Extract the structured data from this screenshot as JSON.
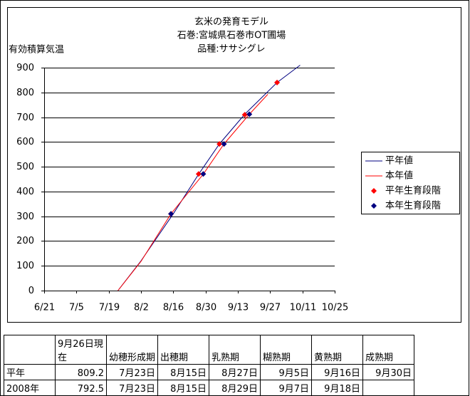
{
  "chart_data": {
    "type": "line",
    "title": "玄米の発育モデル",
    "subtitle": [
      "石巻:宮城県石巻市OT圃場",
      "品種:ササシグレ"
    ],
    "y_label": "有効積算気温",
    "xlim": [
      "6/21",
      "10/25"
    ],
    "xticks": [
      "6/21",
      "7/5",
      "7/19",
      "8/2",
      "8/16",
      "8/30",
      "9/13",
      "9/27",
      "10/11",
      "10/25"
    ],
    "ylim": [
      0,
      900
    ],
    "yticks": [
      0,
      100,
      200,
      300,
      400,
      500,
      600,
      700,
      800,
      900
    ],
    "grid": true,
    "legend": "right",
    "series": [
      {
        "name": "平年値",
        "mark": "line",
        "color": "#000080",
        "x": [
          "7/23",
          "8/2",
          "8/16",
          "8/27",
          "9/5",
          "9/16",
          "9/30",
          "10/10"
        ],
        "values": [
          0,
          120,
          310,
          470,
          592,
          712,
          840,
          910
        ]
      },
      {
        "name": "本年値",
        "mark": "line",
        "color": "#ff0000",
        "x": [
          "7/23",
          "8/2",
          "8/15",
          "8/29",
          "9/7",
          "9/18",
          "9/26"
        ],
        "values": [
          0,
          118,
          310,
          470,
          592,
          712,
          792.5
        ]
      },
      {
        "name": "平年生育段階",
        "mark": "diamond",
        "color": "#ff0000",
        "x": [
          "8/15",
          "8/27",
          "9/5",
          "9/16",
          "9/30"
        ],
        "values": [
          310,
          471,
          592,
          710,
          840
        ]
      },
      {
        "name": "本年生育段階",
        "mark": "diamond",
        "color": "#000080",
        "x": [
          "8/15",
          "8/29",
          "9/7",
          "9/18"
        ],
        "values": [
          310,
          471,
          592,
          712
        ]
      }
    ]
  },
  "table": {
    "header": [
      null,
      "9月26日現在",
      "幼穂形成期",
      "出穂期",
      "乳熟期",
      "糊熟期",
      "黄熟期",
      "成熟期"
    ],
    "rows": [
      [
        "平年",
        "809.2",
        "7月23日",
        "8月15日",
        "8月27日",
        "9月5日",
        "9月16日",
        "9月30日"
      ],
      [
        "2008年",
        "792.5",
        "7月23日",
        "8月15日",
        "8月29日",
        "9月7日",
        "9月18日",
        null
      ]
    ]
  }
}
